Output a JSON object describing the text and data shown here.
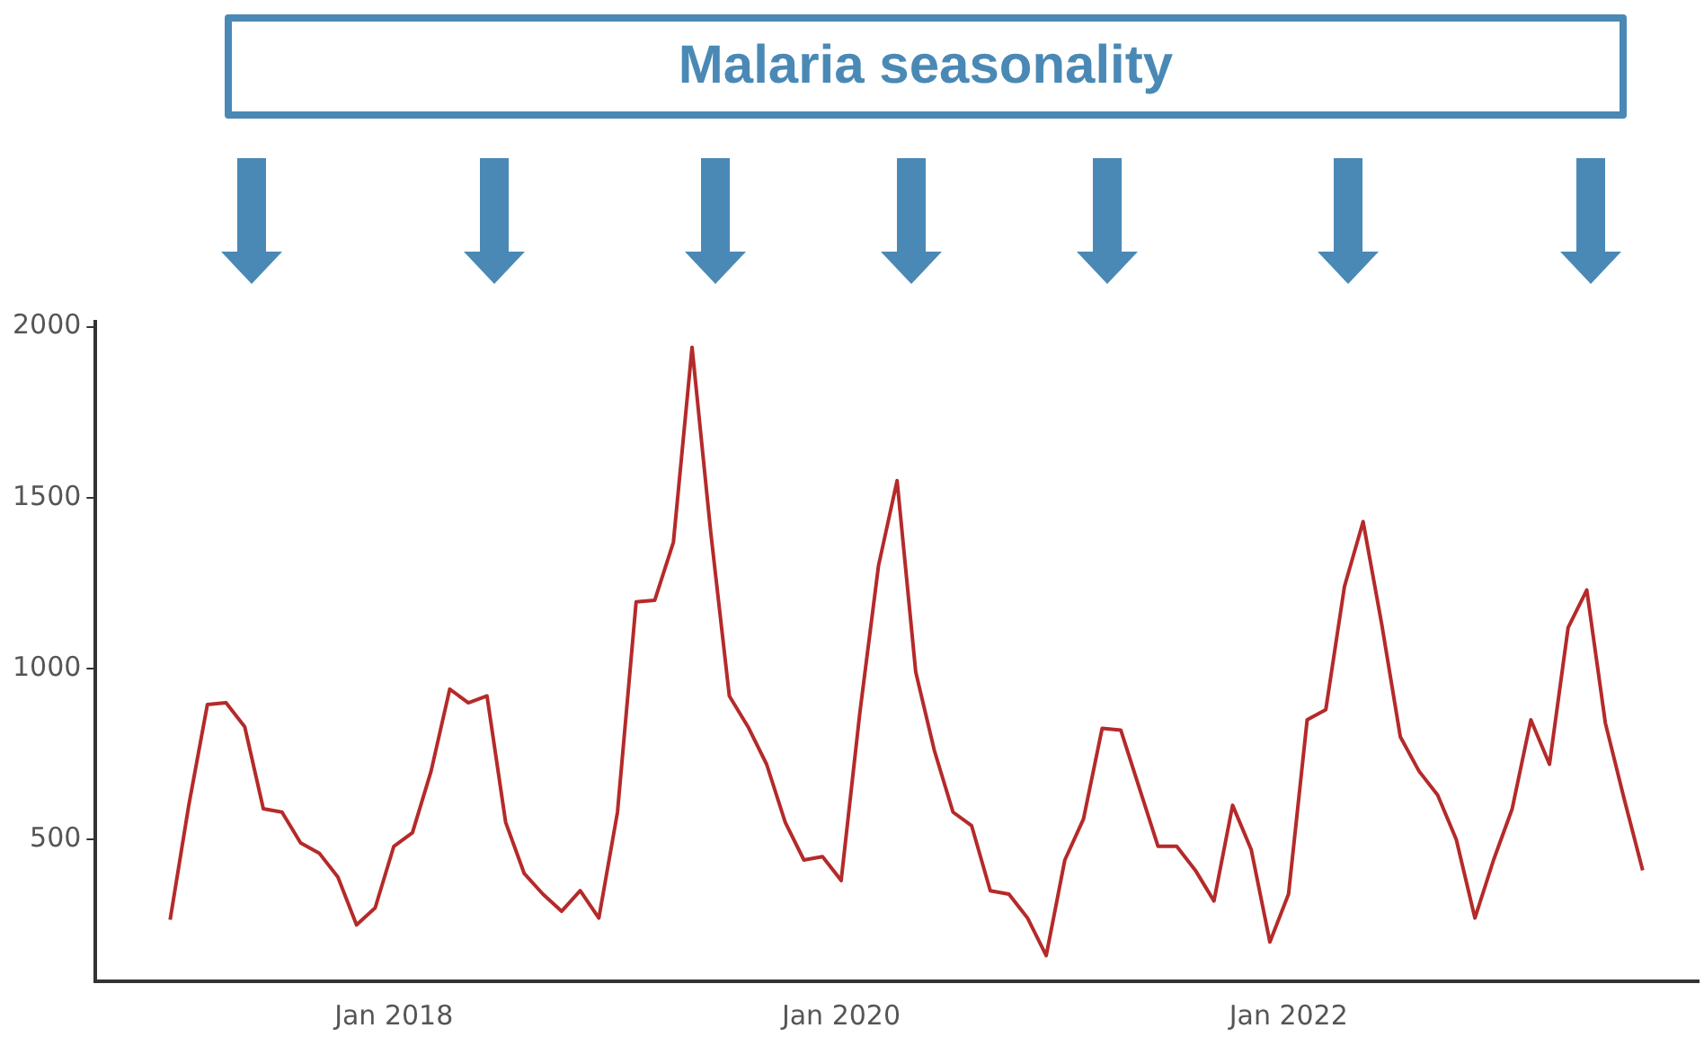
{
  "chart_data": {
    "type": "line",
    "title": "Malaria seasonality",
    "x": [
      "2017-01",
      "2017-02",
      "2017-03",
      "2017-04",
      "2017-05",
      "2017-06",
      "2017-07",
      "2017-08",
      "2017-09",
      "2017-10",
      "2017-11",
      "2017-12",
      "2018-01",
      "2018-02",
      "2018-03",
      "2018-04",
      "2018-05",
      "2018-06",
      "2018-07",
      "2018-08",
      "2018-09",
      "2018-10",
      "2018-11",
      "2018-12",
      "2019-01",
      "2019-02",
      "2019-03",
      "2019-04",
      "2019-05",
      "2019-06",
      "2019-07",
      "2019-08",
      "2019-09",
      "2019-10",
      "2019-11",
      "2019-12",
      "2020-01",
      "2020-02",
      "2020-03",
      "2020-04",
      "2020-05",
      "2020-06",
      "2020-07",
      "2020-08",
      "2020-09",
      "2020-10",
      "2020-11",
      "2020-12",
      "2021-01",
      "2021-02",
      "2021-03",
      "2021-04",
      "2021-05",
      "2021-06",
      "2021-07",
      "2021-08",
      "2021-09",
      "2021-10",
      "2021-11",
      "2021-12",
      "2022-01",
      "2022-02",
      "2022-03",
      "2022-04",
      "2022-05",
      "2022-06",
      "2022-07",
      "2022-08",
      "2022-09",
      "2022-10",
      "2022-11",
      "2022-12",
      "2023-01",
      "2023-02",
      "2023-03",
      "2023-04",
      "2023-05",
      "2023-06",
      "2023-07",
      "2023-08"
    ],
    "series": [
      {
        "color": "#b52a2a",
        "values": [
          265,
          600,
          895,
          900,
          830,
          590,
          580,
          490,
          460,
          390,
          250,
          300,
          480,
          520,
          700,
          940,
          900,
          920,
          550,
          400,
          340,
          290,
          350,
          270,
          580,
          1195,
          1200,
          1370,
          1940,
          1400,
          920,
          830,
          720,
          550,
          440,
          450,
          380,
          870,
          1300,
          1550,
          990,
          760,
          580,
          540,
          350,
          340,
          270,
          160,
          440,
          560,
          825,
          820,
          650,
          480,
          480,
          410,
          320,
          600,
          470,
          200,
          340,
          850,
          880,
          1240,
          1430,
          1130,
          800,
          700,
          630,
          500,
          270,
          440,
          590,
          850,
          720,
          1120,
          1230,
          840,
          620,
          410
        ]
      }
    ],
    "xlim": [
      "2016-09",
      "2023-11"
    ],
    "xticks": [
      {
        "value": "2018-01",
        "label": "Jan 2018"
      },
      {
        "value": "2020-01",
        "label": "Jan 2020"
      },
      {
        "value": "2022-01",
        "label": "Jan 2022"
      }
    ],
    "ylim": [
      85,
      2015
    ],
    "yticks": [
      500,
      1000,
      1500,
      2000
    ],
    "grid": false,
    "legend": false,
    "marker": "none",
    "line_style": "solid"
  }
}
